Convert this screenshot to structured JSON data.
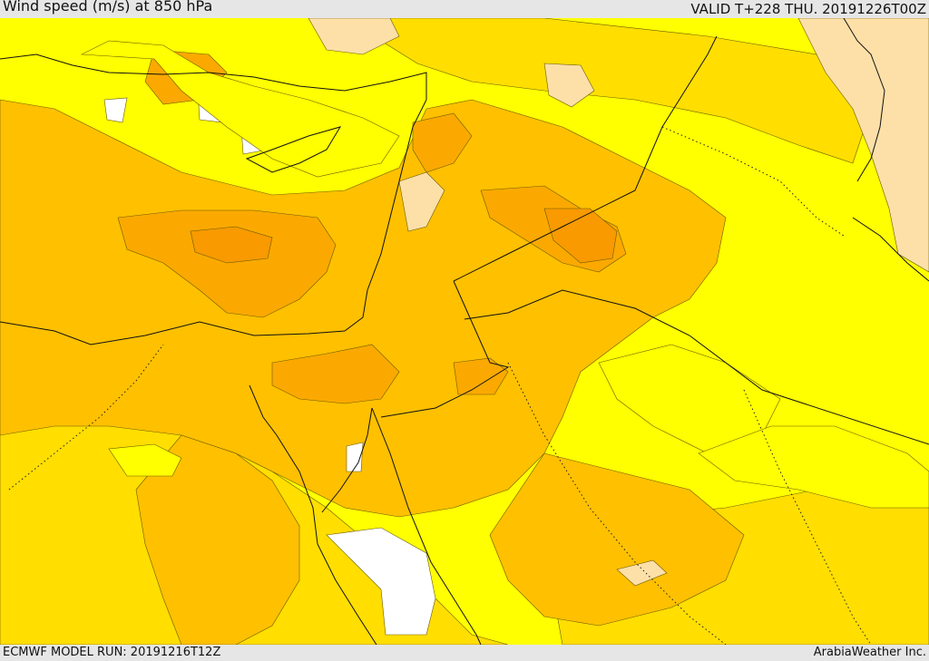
{
  "header": {
    "title": "Wind speed (m/s) at 850 hPa",
    "valid": "VALID T+228 THU. 20191226T00Z"
  },
  "footer": {
    "model_run": "ECMWF MODEL RUN: 20191216T12Z",
    "credit": "ArabiaWeather Inc."
  },
  "palette": {
    "white": "#ffffff",
    "pale": "#fde0a8",
    "yellow": "#ffff00",
    "gold": "#ffde00",
    "amber": "#ffc000",
    "orange": "#fba900",
    "deep_orange": "#f89a00"
  }
}
